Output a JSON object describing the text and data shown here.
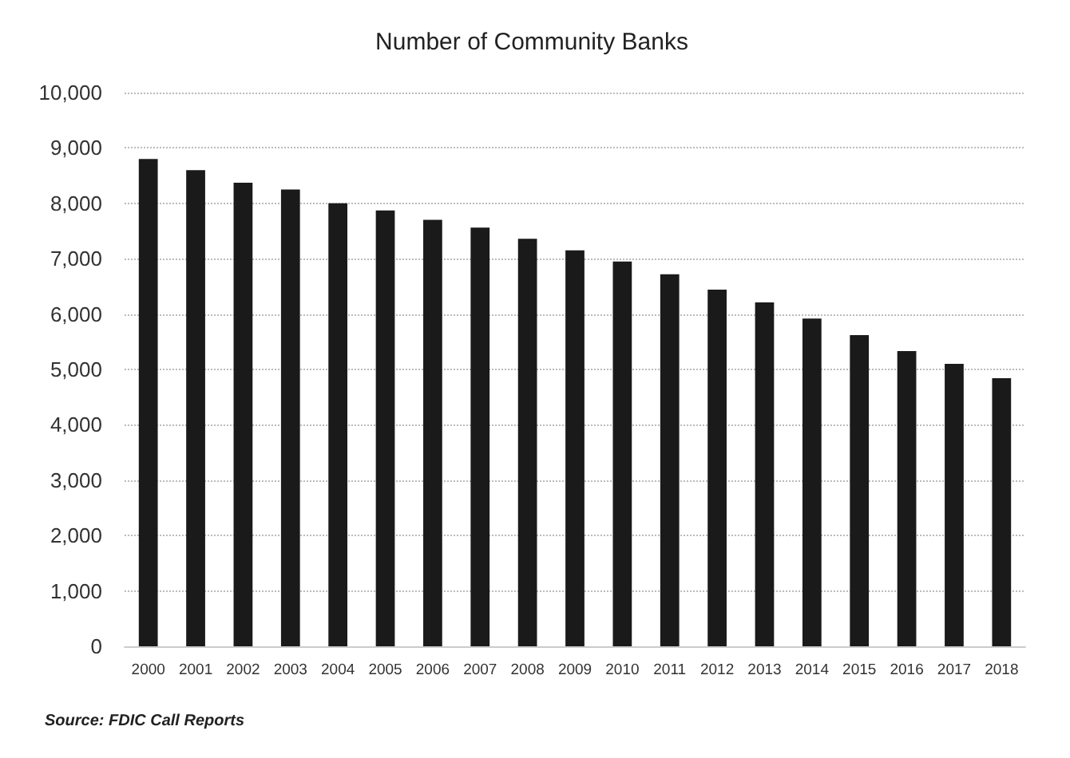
{
  "chart_data": {
    "type": "bar",
    "title": "Number of Community Banks",
    "categories": [
      "2000",
      "2001",
      "2002",
      "2003",
      "2004",
      "2005",
      "2006",
      "2007",
      "2008",
      "2009",
      "2010",
      "2011",
      "2012",
      "2013",
      "2014",
      "2015",
      "2016",
      "2017",
      "2018"
    ],
    "values": [
      8800,
      8600,
      8370,
      8250,
      8000,
      7870,
      7700,
      7560,
      7360,
      7150,
      6950,
      6720,
      6440,
      6210,
      5920,
      5620,
      5330,
      5100,
      4840
    ],
    "color": "#1a1a1a",
    "ylim": [
      0,
      10000
    ],
    "yticks": [
      0,
      {
        "value": 1000,
        "label": "1,000"
      },
      {
        "value": 2000,
        "label": "2,000"
      },
      {
        "value": 3000,
        "label": "3,000"
      },
      {
        "value": 4000,
        "label": "4,000"
      },
      {
        "value": 5000,
        "label": "5,000"
      },
      {
        "value": 6000,
        "label": "6,000"
      },
      {
        "value": 7000,
        "label": "7,000"
      },
      {
        "value": 8000,
        "label": "8,000"
      },
      {
        "value": 9000,
        "label": "9,000"
      },
      {
        "value": 10000,
        "label": "10,000"
      }
    ],
    "grid": "y",
    "annotations": [
      "Source: FDIC Call Reports"
    ]
  }
}
